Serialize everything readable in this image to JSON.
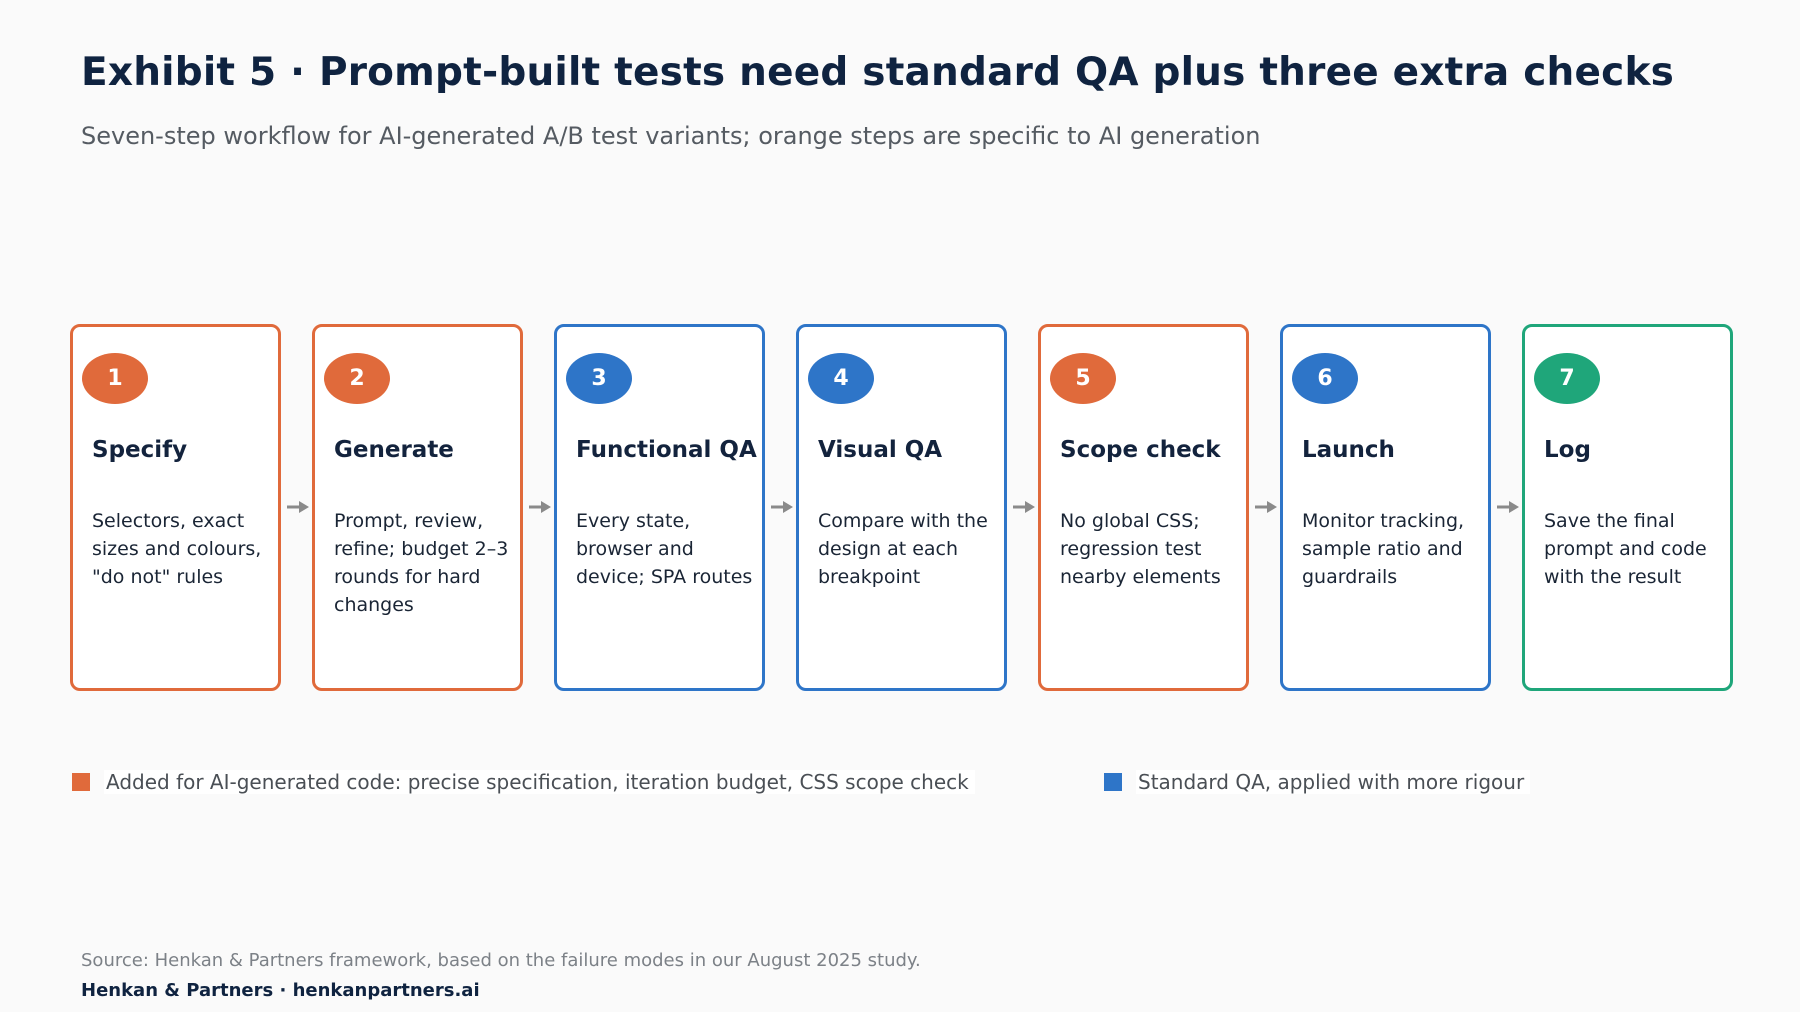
{
  "title": "Exhibit 5 · Prompt-built tests need standard QA plus three extra checks",
  "subtitle": "Seven-step workflow for AI-generated A/B test variants; orange steps are specific to AI generation",
  "colors": {
    "ai_step": "#e06a3b",
    "standard_step": "#2e75c8",
    "final_step": "#1fa67a",
    "arrow": "#8a8a8a"
  },
  "steps": [
    {
      "number": "1",
      "name": "Specify",
      "desc": "Selectors, exact sizes and colours, \"do not\" rules",
      "kind": "ai_step"
    },
    {
      "number": "2",
      "name": "Generate",
      "desc": "Prompt, review, refine; budget 2–3 rounds for hard changes",
      "kind": "ai_step"
    },
    {
      "number": "3",
      "name": "Functional QA",
      "desc": "Every state, browser and device; SPA routes",
      "kind": "standard_step"
    },
    {
      "number": "4",
      "name": "Visual QA",
      "desc": "Compare with the design at each breakpoint",
      "kind": "standard_step"
    },
    {
      "number": "5",
      "name": "Scope check",
      "desc": "No global CSS; regression test nearby elements",
      "kind": "ai_step"
    },
    {
      "number": "6",
      "name": "Launch",
      "desc": "Monitor tracking, sample ratio and guardrails",
      "kind": "standard_step"
    },
    {
      "number": "7",
      "name": "Log",
      "desc": "Save the final prompt and code with the result",
      "kind": "final_step"
    }
  ],
  "legend": [
    {
      "label": "Added for AI-generated code: precise specification, iteration budget, CSS scope check",
      "kind": "ai_step"
    },
    {
      "label": "Standard QA, applied with more rigour",
      "kind": "standard_step"
    }
  ],
  "source": "Source: Henkan & Partners framework, based on the failure modes in our August 2025 study.",
  "brand": "Henkan & Partners · henkanpartners.ai"
}
